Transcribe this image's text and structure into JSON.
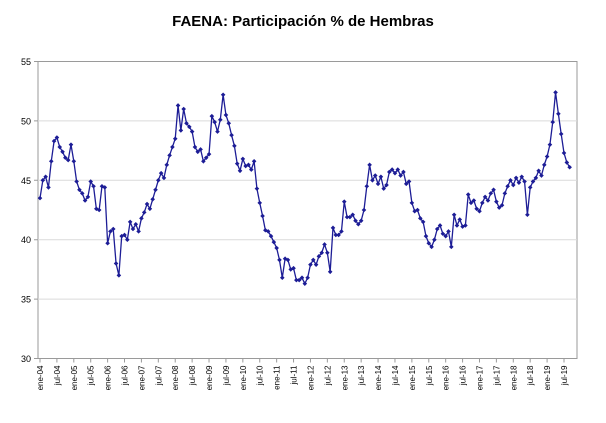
{
  "chart": {
    "title": "FAENA: Participación % de Hembras"
  },
  "chart_data": {
    "type": "line",
    "title": "FAENA: Participación % de Hembras",
    "series_name": "Participación % de Hembras",
    "frequency": "monthly",
    "start_month": "ene-04",
    "end_month": "sep-19",
    "xlabel": "",
    "ylabel": "",
    "ylim": [
      30,
      55
    ],
    "y_ticks": [
      30,
      35,
      40,
      45,
      50,
      55
    ],
    "x_tick_interval_months": 6,
    "x_tick_labels": [
      "ene-04",
      "jul-04",
      "ene-05",
      "jul-05",
      "ene-06",
      "jul-06",
      "ene-07",
      "jul-07",
      "ene-08",
      "jul-08",
      "ene-09",
      "jul-09",
      "ene-10",
      "jul-10",
      "ene-11",
      "jul-11",
      "ene-12",
      "jul-12",
      "ene-13",
      "jul-13",
      "ene-14",
      "jul-14",
      "ene-15",
      "jul-15",
      "ene-16",
      "jul-16",
      "ene-17",
      "jul-17",
      "ene-18",
      "jul-18",
      "ene-19",
      "jul-19"
    ],
    "grid": "horizontal",
    "legend": "none",
    "line_color": "#1d1d96",
    "marker": "diamond",
    "grid_color": "#dadada",
    "axis_color": "#9a9a9a",
    "values": [
      43.5,
      45.0,
      45.3,
      44.4,
      46.6,
      48.3,
      48.6,
      47.8,
      47.4,
      46.9,
      46.7,
      48.0,
      46.6,
      44.9,
      44.2,
      43.9,
      43.3,
      43.6,
      44.9,
      44.5,
      42.6,
      42.5,
      44.5,
      44.4,
      39.7,
      40.7,
      40.9,
      38.0,
      37.0,
      40.3,
      40.4,
      40.0,
      41.5,
      40.9,
      41.3,
      40.7,
      41.8,
      42.3,
      43.0,
      42.6,
      43.4,
      44.2,
      45.0,
      45.6,
      45.2,
      46.3,
      47.1,
      47.8,
      48.5,
      51.3,
      49.2,
      51.0,
      49.8,
      49.5,
      49.1,
      47.8,
      47.4,
      47.6,
      46.6,
      46.9,
      47.2,
      50.4,
      49.9,
      49.1,
      50.1,
      52.2,
      50.5,
      49.8,
      48.8,
      47.9,
      46.4,
      45.8,
      46.8,
      46.2,
      46.3,
      45.9,
      46.6,
      44.3,
      43.1,
      42.0,
      40.8,
      40.7,
      40.3,
      39.8,
      39.3,
      38.3,
      36.8,
      38.4,
      38.3,
      37.5,
      37.6,
      36.6,
      36.6,
      36.8,
      36.3,
      36.8,
      37.9,
      38.3,
      37.9,
      38.6,
      38.9,
      39.6,
      38.9,
      37.3,
      41.0,
      40.4,
      40.4,
      40.7,
      43.2,
      41.9,
      41.9,
      42.1,
      41.6,
      41.3,
      41.6,
      42.5,
      44.5,
      46.3,
      45.0,
      45.4,
      44.7,
      45.3,
      44.3,
      44.6,
      45.7,
      45.9,
      45.6,
      45.9,
      45.4,
      45.7,
      44.7,
      44.9,
      43.1,
      42.4,
      42.5,
      41.8,
      41.5,
      40.3,
      39.7,
      39.4,
      40.0,
      40.9,
      41.2,
      40.5,
      40.3,
      40.7,
      39.4,
      42.1,
      41.2,
      41.7,
      41.1,
      41.2,
      43.8,
      43.1,
      43.3,
      42.6,
      42.4,
      43.1,
      43.6,
      43.3,
      43.9,
      44.2,
      43.2,
      42.7,
      42.9,
      43.9,
      44.5,
      45.0,
      44.6,
      45.2,
      44.8,
      45.3,
      44.9,
      42.1,
      44.4,
      44.9,
      45.2,
      45.8,
      45.4,
      46.3,
      47.0,
      48.0,
      49.9,
      52.4,
      50.6,
      48.9,
      47.3,
      46.5,
      46.1
    ]
  }
}
